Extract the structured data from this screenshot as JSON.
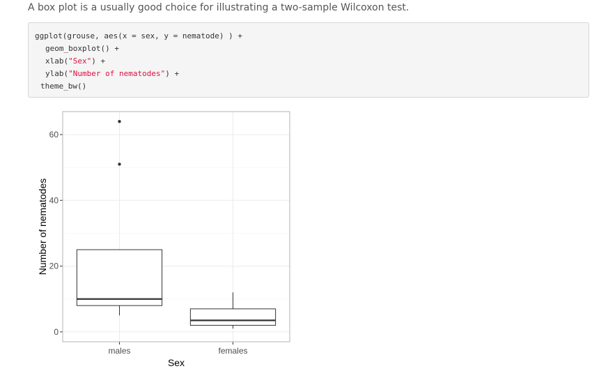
{
  "intro_text": "A box plot is a usually good choice for illustrating a two-sample Wilcoxon test.",
  "code": {
    "line1": "ggplot(grouse, aes(x = sex, y = nematode) ) +",
    "line2": "geom_boxplot() +",
    "line3_pre": "xlab(",
    "line3_str": "\"Sex\"",
    "line3_post": ") +",
    "line4_pre": "ylab(",
    "line4_str": "\"Number of nematodes\"",
    "line4_post": ") +",
    "line5": "theme_bw()"
  },
  "colors": {
    "code_string": "#dd1144",
    "code_background": "#f5f5f5",
    "plot_grid": "#ebebeb",
    "plot_border": "#b3b3b3"
  },
  "chart_data": {
    "type": "box",
    "xlabel": "Sex",
    "ylabel": "Number of nematodes",
    "categories": [
      "males",
      "females"
    ],
    "ylim": [
      -3,
      67
    ],
    "yticks": [
      0,
      20,
      40,
      60
    ],
    "boxes": [
      {
        "name": "males",
        "lower_whisker": 5,
        "q1": 8,
        "median": 10,
        "q3": 25,
        "upper_whisker": 25,
        "outliers": [
          51,
          64
        ]
      },
      {
        "name": "females",
        "lower_whisker": 1,
        "q1": 2,
        "median": 3.5,
        "q3": 7,
        "upper_whisker": 12,
        "outliers": []
      }
    ],
    "grid": true,
    "legend": "none"
  }
}
